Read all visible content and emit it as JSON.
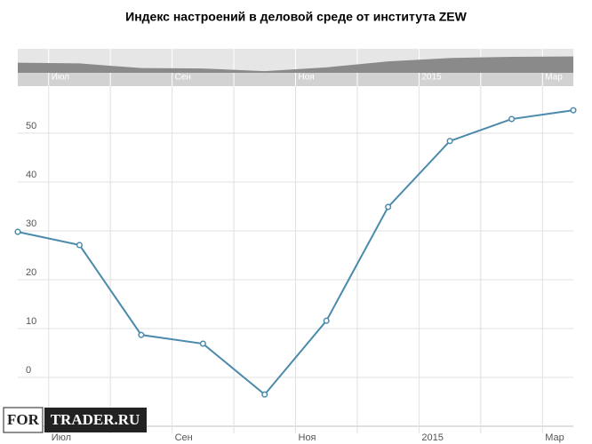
{
  "chart_data": {
    "type": "line",
    "title": "Индекс настроений в деловой среде от института ZEW",
    "categories": [
      null,
      "Июл",
      null,
      "Сен",
      null,
      "Ноя",
      null,
      "2015",
      null,
      "Мар"
    ],
    "series": [
      {
        "name": "ZEW",
        "color": "#4a8aab",
        "values": [
          29.8,
          27.1,
          8.7,
          6.9,
          -3.5,
          11.6,
          34.9,
          48.4,
          52.9,
          54.7
        ]
      }
    ],
    "ylim": [
      -10,
      60
    ],
    "yticks": [
      0,
      10,
      20,
      30,
      40,
      50
    ],
    "grid": true,
    "watermark": [
      "FOR",
      "TRADER.RU"
    ]
  }
}
